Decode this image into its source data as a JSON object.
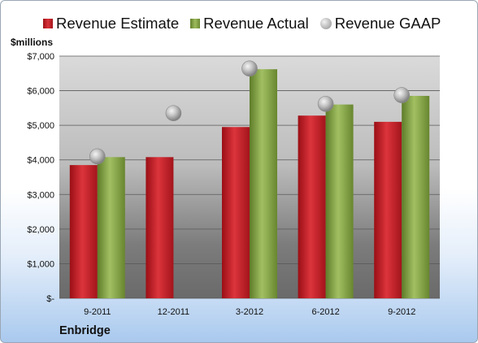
{
  "chart_data": {
    "type": "bar",
    "categories": [
      "9-2011",
      "12-2011",
      "3-2012",
      "6-2012",
      "9-2012"
    ],
    "series": [
      {
        "name": "Revenue Estimate",
        "values": [
          3850,
          4080,
          4950,
          5280,
          5100
        ],
        "color": "#cc1f26"
      },
      {
        "name": "Revenue Actual",
        "values": [
          4080,
          null,
          6620,
          5600,
          5850
        ],
        "color": "#8aa84a"
      },
      {
        "name": "Revenue GAAP",
        "values": [
          4100,
          5350,
          6640,
          5620,
          5870
        ],
        "color": "#b8b8b8",
        "marker": "sphere"
      }
    ],
    "ylabel": "$millions",
    "yticks": [
      "$-",
      "$1,000",
      "$2,000",
      "$3,000",
      "$4,000",
      "$5,000",
      "$6,000",
      "$7,000"
    ],
    "ylim": [
      0,
      7000
    ],
    "grid": true,
    "legend": "top"
  },
  "company": "Enbridge"
}
